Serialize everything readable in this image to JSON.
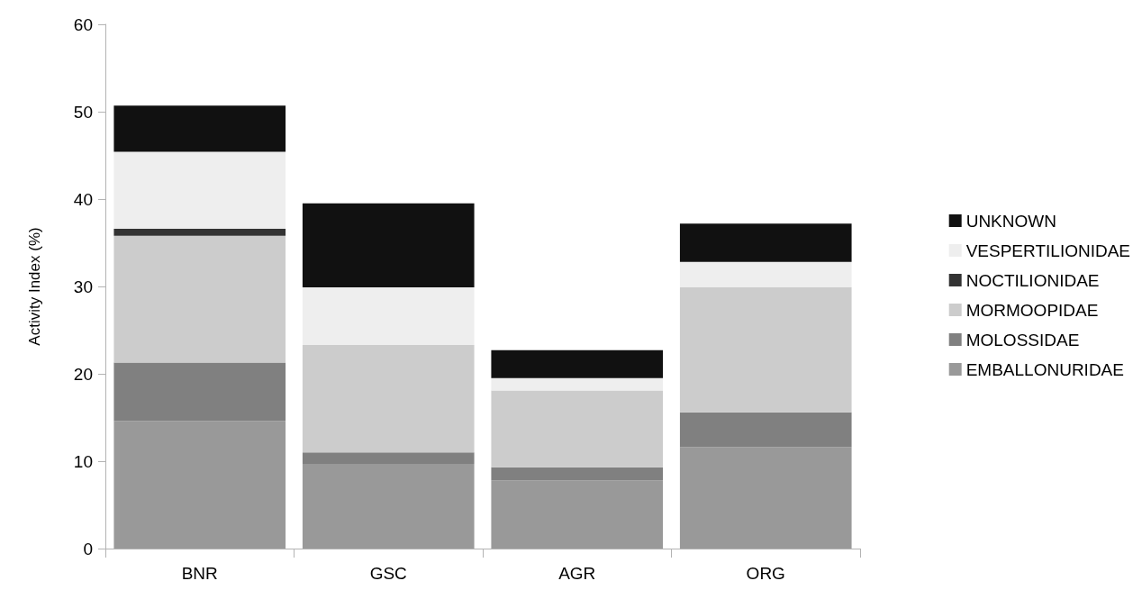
{
  "chart_data": {
    "type": "bar",
    "stacked": true,
    "ylabel": "Activity Index (%)",
    "categories": [
      "BNR",
      "GSC",
      "AGR",
      "ORG"
    ],
    "series": [
      {
        "name": "EMBALLONURIDAE",
        "color": "#999999",
        "values": [
          14.6,
          9.7,
          7.8,
          11.6
        ]
      },
      {
        "name": "MOLOSSIDAE",
        "color": "#808080",
        "values": [
          6.7,
          1.3,
          1.5,
          4.0
        ]
      },
      {
        "name": "MORMOOPIDAE",
        "color": "#cccccc",
        "values": [
          14.5,
          12.3,
          8.8,
          14.3
        ]
      },
      {
        "name": "NOCTILIONIDAE",
        "color": "#333333",
        "values": [
          0.8,
          0,
          0,
          0
        ]
      },
      {
        "name": "VESPERTILIONIDAE",
        "color": "#eeeeee",
        "values": [
          8.8,
          6.6,
          1.4,
          2.9
        ]
      },
      {
        "name": "UNKNOWN",
        "color": "#111111",
        "values": [
          5.3,
          9.6,
          3.2,
          4.4
        ]
      }
    ],
    "ylim": [
      0,
      60
    ],
    "yticks": [
      0,
      10,
      20,
      30,
      40,
      50,
      60
    ],
    "grid": false,
    "legend": "right"
  }
}
